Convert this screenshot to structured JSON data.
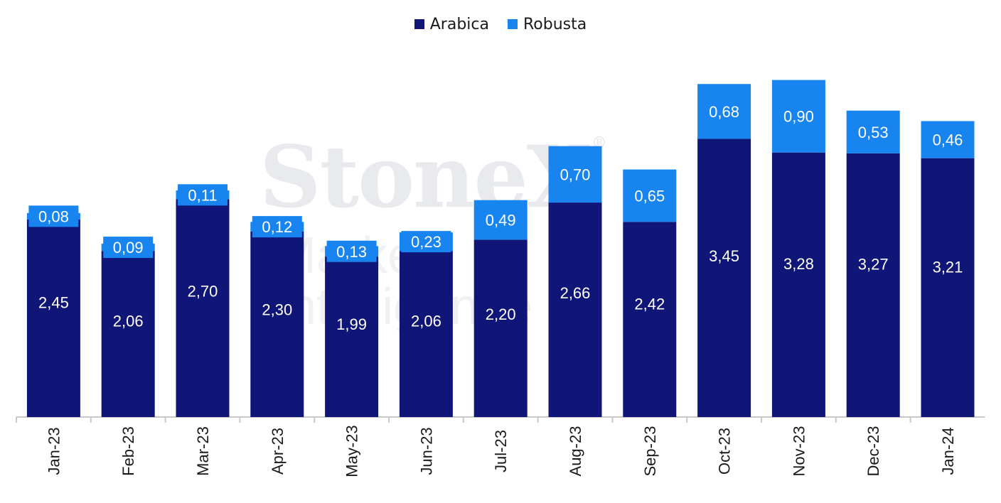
{
  "watermark": {
    "logo": "StoneX",
    "registered": "®",
    "subtitle": "Market Intelligence"
  },
  "colors": {
    "arabica": "#101677",
    "robusta": "#1784f0",
    "axis": "#c8c8c8",
    "label_text": "#ffffff",
    "tick_text": "#1a1a1a"
  },
  "chart_data": {
    "type": "bar",
    "stacked": true,
    "categories": [
      "Jan-23",
      "Feb-23",
      "Mar-23",
      "Apr-23",
      "May-23",
      "Jun-23",
      "Jul-23",
      "Aug-23",
      "Sep-23",
      "Oct-23",
      "Nov-23",
      "Dec-23",
      "Jan-24"
    ],
    "series": [
      {
        "name": "Arabica",
        "values": [
          2.45,
          2.06,
          2.7,
          2.3,
          1.99,
          2.06,
          2.2,
          2.66,
          2.42,
          3.45,
          3.28,
          3.27,
          3.21
        ],
        "labels": [
          "2,45",
          "2,06",
          "2,70",
          "2,30",
          "1,99",
          "2,06",
          "2,20",
          "2,66",
          "2,42",
          "3,45",
          "3,28",
          "3,27",
          "3,21"
        ]
      },
      {
        "name": "Robusta",
        "values": [
          0.08,
          0.09,
          0.11,
          0.12,
          0.13,
          0.23,
          0.49,
          0.7,
          0.65,
          0.68,
          0.9,
          0.53,
          0.46
        ],
        "labels": [
          "0,08",
          "0,09",
          "0,11",
          "0,12",
          "0,13",
          "0,23",
          "0,49",
          "0,70",
          "0,65",
          "0,68",
          "0,90",
          "0,53",
          "0,46"
        ]
      }
    ],
    "legend_position": "top-center",
    "ylim": [
      0,
      4.2
    ],
    "grid": false,
    "xlabel": "",
    "ylabel": ""
  }
}
